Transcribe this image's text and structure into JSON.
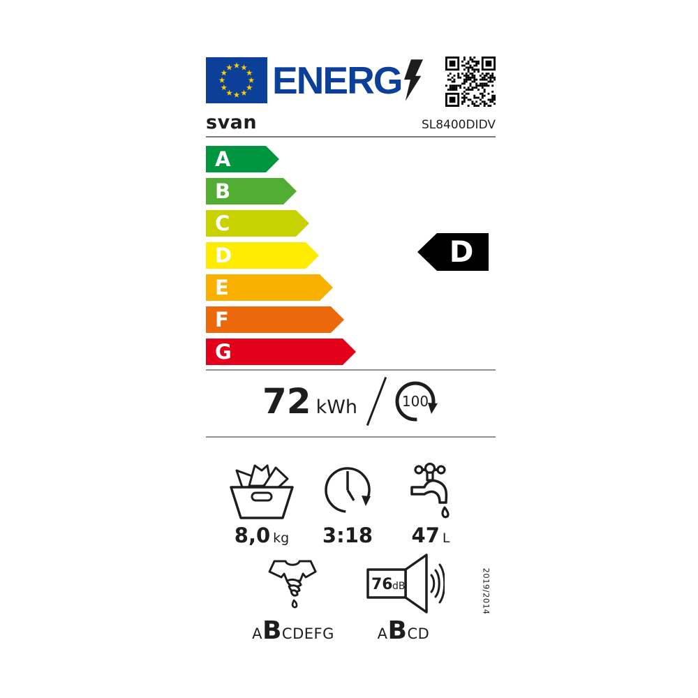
{
  "header": {
    "logo_text": "ENERG",
    "eu_blue": "#0c3f97",
    "star_yellow": "#ffcc00"
  },
  "brand": {
    "name": "svan",
    "model": "SL8400DIDV"
  },
  "scale": {
    "classes": [
      {
        "letter": "A",
        "color": "#009640"
      },
      {
        "letter": "B",
        "color": "#52ae32"
      },
      {
        "letter": "C",
        "color": "#c8d200"
      },
      {
        "letter": "D",
        "color": "#ffec00"
      },
      {
        "letter": "E",
        "color": "#f9b000"
      },
      {
        "letter": "F",
        "color": "#eb690b"
      },
      {
        "letter": "G",
        "color": "#e2001a"
      }
    ],
    "rated_class": "D"
  },
  "energy": {
    "value": "72",
    "unit": "kWh",
    "per_cycles": "100"
  },
  "metrics": {
    "capacity": {
      "value": "8,0",
      "unit": "kg"
    },
    "duration": {
      "value": "3:18"
    },
    "water": {
      "value": "47",
      "unit": "L"
    }
  },
  "spin": {
    "prefix": "A",
    "rated": "B",
    "suffix": "CDEFG"
  },
  "noise": {
    "value": "76",
    "unit": "dB",
    "prefix": "A",
    "rated": "B",
    "suffix": "CD"
  },
  "regulation": "2019/2014"
}
